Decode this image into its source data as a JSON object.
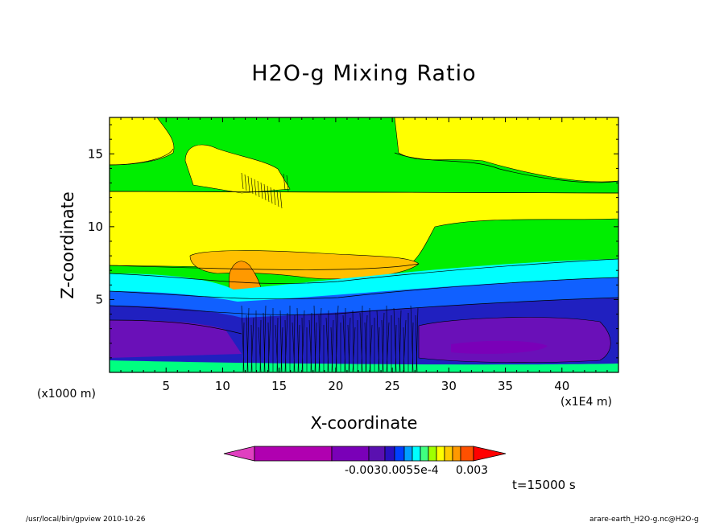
{
  "chart_data": {
    "type": "heatmap",
    "title": "H2O-g Mixing Ratio",
    "xlabel": "X-coordinate",
    "ylabel": "Z-coordinate",
    "x_unit_left": "(x1000 m)",
    "x_unit_right": "(x1E4 m)",
    "x_ticks": [
      5,
      10,
      15,
      20,
      25,
      30,
      35,
      40
    ],
    "y_ticks": [
      5,
      10,
      15
    ],
    "xlim": [
      0,
      45
    ],
    "ylim": [
      0,
      17.5
    ],
    "time_label": "t=15000 s",
    "colorbar": {
      "labels": [
        "-0.0030.0055e-4",
        "0.003"
      ],
      "colors": [
        "#e040c0",
        "#b000b0",
        "#7a00b8",
        "#5a10b0",
        "#2a10c0",
        "#0040ff",
        "#00a0ff",
        "#00ffff",
        "#40ff80",
        "#a0ff00",
        "#ffff00",
        "#ffcc00",
        "#ff9900",
        "#ff5000",
        "#ff0000"
      ]
    },
    "regions": [
      {
        "name": "upper-yellow-left",
        "color": "#ffff00"
      },
      {
        "name": "upper-green",
        "color": "#00ee00"
      },
      {
        "name": "anvil-yellow",
        "color": "#ffff00"
      },
      {
        "name": "core-orange",
        "color": "#ffc000"
      },
      {
        "name": "cyan-band",
        "color": "#00ffff"
      },
      {
        "name": "blue-band",
        "color": "#1060ff"
      },
      {
        "name": "dark-blue",
        "color": "#2020c0"
      },
      {
        "name": "purple-pool",
        "color": "#6a10b8"
      }
    ]
  },
  "footer": {
    "left": "/usr/local/bin/gpview  2010-10-26",
    "right": "arare-earth_H2O-g.nc@H2O-g"
  }
}
